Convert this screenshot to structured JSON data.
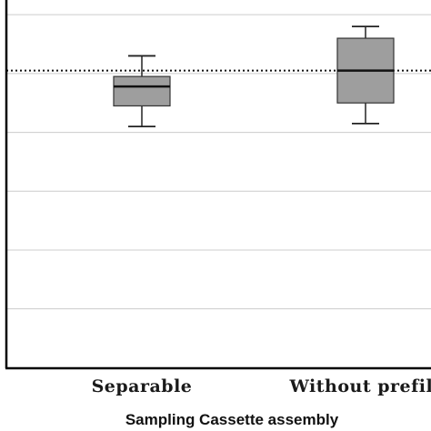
{
  "chart_data": {
    "type": "box",
    "xlabel": "Sampling Cassette assembly",
    "ylabel": "",
    "categories": [
      "Separable",
      "Without prefilt"
    ],
    "boxes": [
      {
        "category": "Separable",
        "whisker_low": 41,
        "q1": 44.5,
        "median": 47.8,
        "q3": 49.5,
        "whisker_high": 53
      },
      {
        "category": "Without prefilt",
        "whisker_low": 41.5,
        "q1": 45,
        "median": 50.5,
        "q3": 56,
        "whisker_high": 58
      }
    ],
    "reference_line": {
      "value": 50.5,
      "style": "dotted"
    },
    "ylim": [
      -0.1,
      62.5
    ],
    "gridlines": [
      10,
      20,
      30,
      40,
      50,
      60
    ],
    "grid": true,
    "colors": {
      "box_fill": "#9e9e9e",
      "grid": "#cccccc",
      "axis": "#000000"
    }
  }
}
